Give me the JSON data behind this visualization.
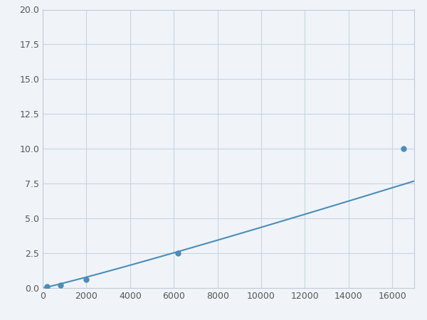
{
  "x": [
    200,
    800,
    2000,
    6200,
    16500
  ],
  "y": [
    0.1,
    0.2,
    0.6,
    2.5,
    10.0
  ],
  "line_color": "#4a8db8",
  "marker_color": "#4a8db8",
  "marker_size": 5,
  "line_width": 1.5,
  "xlim": [
    0,
    17000
  ],
  "ylim": [
    0,
    20
  ],
  "xticks": [
    0,
    2000,
    4000,
    6000,
    8000,
    10000,
    12000,
    14000,
    16000
  ],
  "xticklabels": [
    "0",
    "2000",
    "4000",
    "6000",
    "8000",
    "10000",
    "12000",
    "14000",
    "16000"
  ],
  "yticks": [
    0.0,
    2.5,
    5.0,
    7.5,
    10.0,
    12.5,
    15.0,
    17.5,
    20.0
  ],
  "yticklabels": [
    "0.0",
    "2.5",
    "5.0",
    "7.5",
    "10.0",
    "12.5",
    "15.0",
    "17.5",
    "20.0"
  ],
  "grid_color": "#c8d4e0",
  "background_color": "#f0f4f8",
  "tick_fontsize": 9,
  "spine_color": "#c0ccd8",
  "power_a": 2.5e-08,
  "power_b": 1.85
}
